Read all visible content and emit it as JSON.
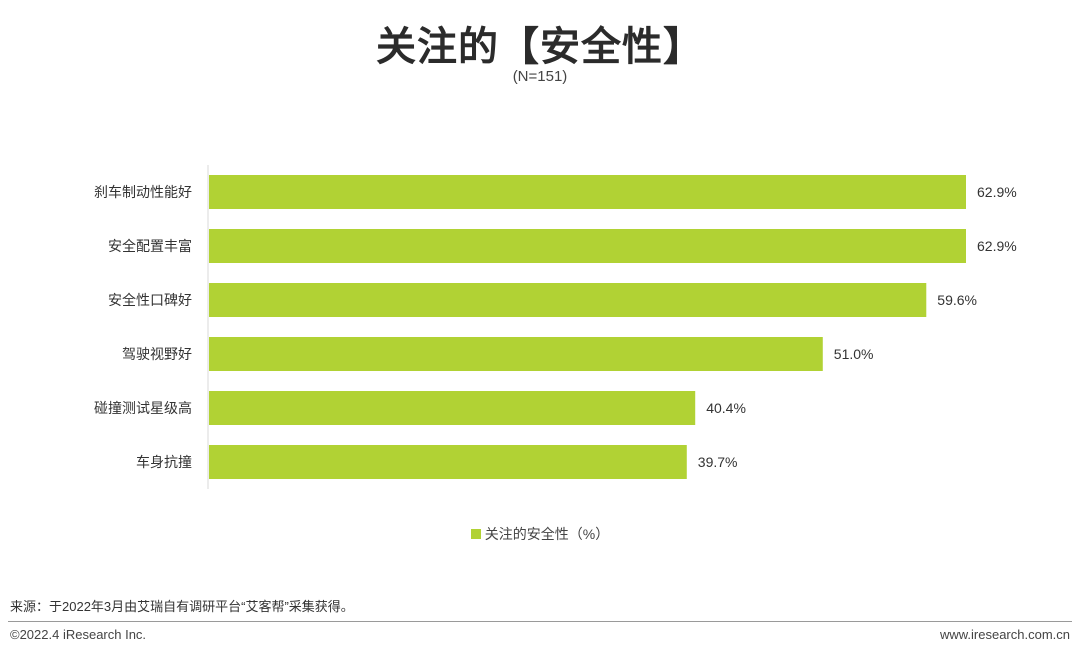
{
  "header": {
    "title": "关注的【安全性】",
    "subtitle": "(N=151)"
  },
  "chart_data": {
    "type": "bar",
    "orientation": "horizontal",
    "categories": [
      "刹车制动性能好",
      "安全配置丰富",
      "安全性口碑好",
      "驾驶视野好",
      "碰撞测试星级高",
      "车身抗撞"
    ],
    "series": [
      {
        "name": "关注的安全性（%）",
        "values": [
          62.9,
          62.9,
          59.6,
          51.0,
          40.4,
          39.7
        ],
        "value_labels": [
          "62.9%",
          "62.9%",
          "59.6%",
          "51.0%",
          "40.4%",
          "39.7%"
        ],
        "color": "#b1d234"
      }
    ],
    "xlim": [
      0,
      62.9
    ],
    "grid": false,
    "legend": "bottom-center"
  },
  "legend": {
    "label": "关注的安全性（%）"
  },
  "footer": {
    "source": "来源：于2022年3月由艾瑞自有调研平台“艾客帮”采集获得。",
    "copyright": "©2022.4 iResearch Inc.",
    "website": "www.iresearch.com.cn"
  },
  "colors": {
    "bar": "#b1d234",
    "axis": "#d9d9d9"
  }
}
